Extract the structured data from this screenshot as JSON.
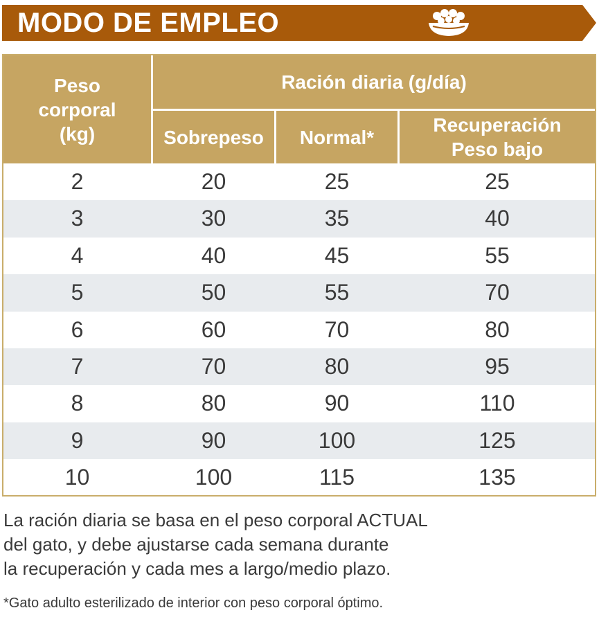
{
  "banner": {
    "title": "MODO DE EMPLEO",
    "icon": "food-bowl-icon",
    "color": "#a85a0a"
  },
  "table": {
    "header_color": "#c6a562",
    "stripe_color": "#e8ebee",
    "col_weight": "Peso corporal (kg)",
    "col_weight_lines": [
      "Peso",
      "corporal",
      "(kg)"
    ],
    "group_header": "Ración diaria (g/día)",
    "col_over": "Sobrepeso",
    "col_normal": "Normal*",
    "col_recovery_lines": [
      "Recuperación",
      "Peso bajo"
    ],
    "rows": [
      {
        "weight": "2",
        "over": "20",
        "normal": "25",
        "recovery": "25"
      },
      {
        "weight": "3",
        "over": "30",
        "normal": "35",
        "recovery": "40"
      },
      {
        "weight": "4",
        "over": "40",
        "normal": "45",
        "recovery": "55"
      },
      {
        "weight": "5",
        "over": "50",
        "normal": "55",
        "recovery": "70"
      },
      {
        "weight": "6",
        "over": "60",
        "normal": "70",
        "recovery": "80"
      },
      {
        "weight": "7",
        "over": "70",
        "normal": "80",
        "recovery": "95"
      },
      {
        "weight": "8",
        "over": "80",
        "normal": "90",
        "recovery": "110"
      },
      {
        "weight": "9",
        "over": "90",
        "normal": "100",
        "recovery": "125"
      },
      {
        "weight": "10",
        "over": "100",
        "normal": "115",
        "recovery": "135"
      }
    ]
  },
  "note_lines": [
    "La ración diaria se basa en el peso corporal ACTUAL",
    "del gato, y debe ajustarse cada semana durante",
    "la recuperación y cada mes a largo/medio plazo."
  ],
  "footnote": "*Gato adulto esterilizado de interior con peso corporal óptimo."
}
